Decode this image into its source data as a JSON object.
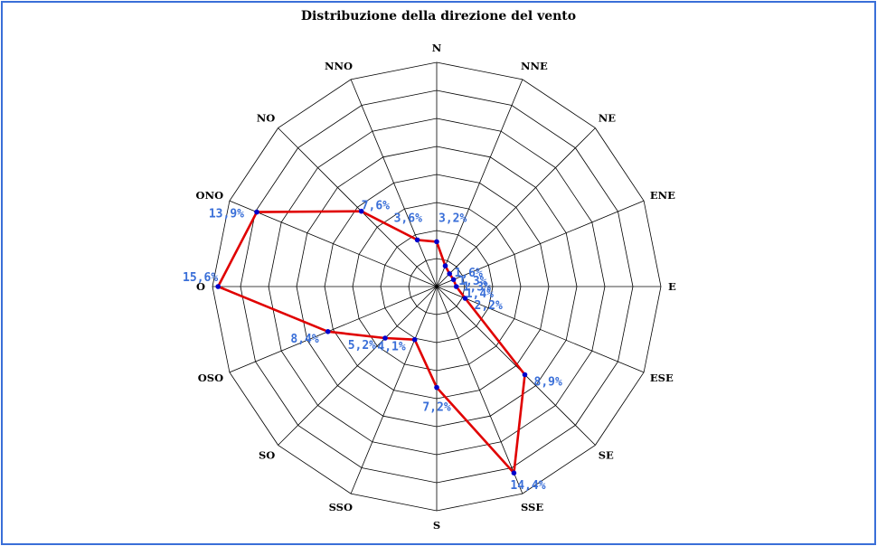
{
  "chart_data": {
    "type": "radar",
    "title": "Distribuzione della direzione del vento",
    "directions": [
      "N",
      "NNE",
      "NE",
      "ENE",
      "E",
      "ESE",
      "SE",
      "SSE",
      "S",
      "SSO",
      "SO",
      "OSO",
      "O",
      "ONO",
      "NO",
      "NNO"
    ],
    "values": [
      3.2,
      1.6,
      1.3,
      1.3,
      1.4,
      2.2,
      8.9,
      14.4,
      7.2,
      4.1,
      5.2,
      8.4,
      15.6,
      13.9,
      7.6,
      3.6
    ],
    "value_labels": [
      "3,2%",
      "1,6%",
      "1,3%",
      "1,3%",
      "1,4%",
      "2,2%",
      "8,9%",
      "14,4%",
      "7,2%",
      "4,1%",
      "5,2%",
      "8,4%",
      "15,6%",
      "13,9%",
      "7,6%",
      "3,6%"
    ],
    "rlim": [
      0,
      16
    ],
    "rings": 8,
    "grid": true,
    "line_color": "#e00000",
    "marker_color": "#0000cc",
    "label_color": "#3a6fd8"
  }
}
